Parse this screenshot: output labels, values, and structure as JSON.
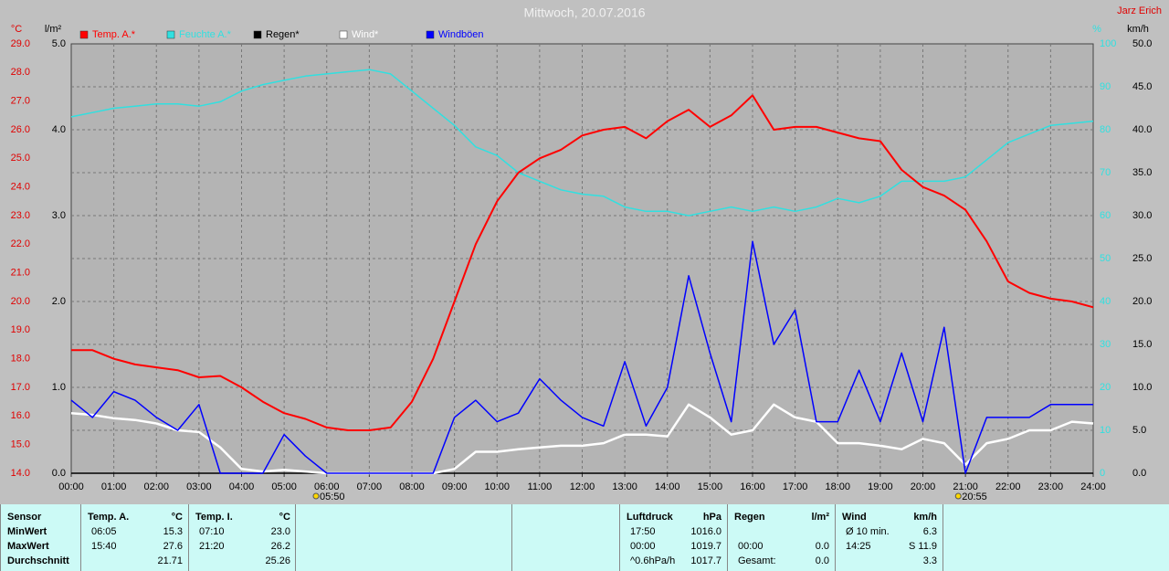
{
  "chart_data": {
    "type": "line",
    "title": "Mittwoch, 20.07.2016",
    "annotations": [
      {
        "text": "Jarz Erich"
      }
    ],
    "sun_markers": [
      {
        "text": "05:50",
        "x": 5.8333
      },
      {
        "text": "20:55",
        "x": 20.9167
      }
    ],
    "xlim": [
      0,
      24
    ],
    "xticks": [
      {
        "value": 0,
        "label": "00:00"
      },
      {
        "value": 1,
        "label": "01:00"
      },
      {
        "value": 2,
        "label": "02:00"
      },
      {
        "value": 3,
        "label": "03:00"
      },
      {
        "value": 4,
        "label": "04:00"
      },
      {
        "value": 5,
        "label": "05:00"
      },
      {
        "value": 6,
        "label": "06:00"
      },
      {
        "value": 7,
        "label": "07:00"
      },
      {
        "value": 8,
        "label": "08:00"
      },
      {
        "value": 9,
        "label": "09:00"
      },
      {
        "value": 10,
        "label": "10:00"
      },
      {
        "value": 11,
        "label": "11:00"
      },
      {
        "value": 12,
        "label": "12:00"
      },
      {
        "value": 13,
        "label": "13:00"
      },
      {
        "value": 14,
        "label": "14:00"
      },
      {
        "value": 15,
        "label": "15:00"
      },
      {
        "value": 16,
        "label": "16:00"
      },
      {
        "value": 17,
        "label": "17:00"
      },
      {
        "value": 18,
        "label": "18:00"
      },
      {
        "value": 19,
        "label": "19:00"
      },
      {
        "value": 20,
        "label": "20:00"
      },
      {
        "value": 21,
        "label": "21:00"
      },
      {
        "value": 22,
        "label": "22:00"
      },
      {
        "value": 23,
        "label": "23:00"
      },
      {
        "value": 24,
        "label": "24:00"
      }
    ],
    "grid": true,
    "axes": [
      {
        "title": "°C",
        "color": "#e00000",
        "lim": [
          14,
          29
        ],
        "ticks": [
          {
            "value": 14,
            "label": "14.0"
          },
          {
            "value": 15,
            "label": "15.0"
          },
          {
            "value": 16,
            "label": "16.0"
          },
          {
            "value": 17,
            "label": "17.0"
          },
          {
            "value": 18,
            "label": "18.0"
          },
          {
            "value": 19,
            "label": "19.0"
          },
          {
            "value": 20,
            "label": "20.0"
          },
          {
            "value": 21,
            "label": "21.0"
          },
          {
            "value": 22,
            "label": "22.0"
          },
          {
            "value": 23,
            "label": "23.0"
          },
          {
            "value": 24,
            "label": "24.0"
          },
          {
            "value": 25,
            "label": "25.0"
          },
          {
            "value": 26,
            "label": "26.0"
          },
          {
            "value": 27,
            "label": "27.0"
          },
          {
            "value": 28,
            "label": "28.0"
          },
          {
            "value": 29,
            "label": "29.0"
          }
        ]
      },
      {
        "title": "l/m²",
        "color": "#000000",
        "lim": [
          0,
          5
        ],
        "ticks": [
          {
            "value": 0,
            "label": "0.0"
          },
          {
            "value": 1,
            "label": "1.0"
          },
          {
            "value": 2,
            "label": "2.0"
          },
          {
            "value": 3,
            "label": "3.0"
          },
          {
            "value": 4,
            "label": "4.0"
          },
          {
            "value": 5,
            "label": "5.0"
          }
        ]
      },
      {
        "title": "%",
        "color": "#30e0e0",
        "lim": [
          0,
          100
        ],
        "ticks": [
          0,
          10,
          20,
          30,
          40,
          50,
          60,
          70,
          80,
          90,
          100
        ]
      },
      {
        "title": "km/h",
        "color": "#000000",
        "lim": [
          0,
          50
        ],
        "ticks": [
          {
            "value": 0,
            "label": "0.0"
          },
          {
            "value": 5,
            "label": "5.0"
          },
          {
            "value": 10,
            "label": "10.0"
          },
          {
            "value": 15,
            "label": "15.0"
          },
          {
            "value": 20,
            "label": "20.0"
          },
          {
            "value": 25,
            "label": "25.0"
          },
          {
            "value": 30,
            "label": "30.0"
          },
          {
            "value": 35,
            "label": "35.0"
          },
          {
            "value": 40,
            "label": "40.0"
          },
          {
            "value": 45,
            "label": "45.0"
          },
          {
            "value": 50,
            "label": "50.0"
          }
        ]
      }
    ],
    "x": [
      0,
      0.5,
      1,
      1.5,
      2,
      2.5,
      3,
      3.5,
      4,
      4.5,
      5,
      5.5,
      6,
      6.5,
      7,
      7.5,
      8,
      8.5,
      9,
      9.5,
      10,
      10.5,
      11,
      11.5,
      12,
      12.5,
      13,
      13.5,
      14,
      14.5,
      15,
      15.5,
      16,
      16.5,
      17,
      17.5,
      18,
      18.5,
      19,
      19.5,
      20,
      20.5,
      21,
      21.5,
      22,
      22.5,
      23,
      23.5,
      24
    ],
    "series": [
      {
        "name": "Temp. A.*",
        "color": "#ff0000",
        "axis": 0,
        "values": [
          18.3,
          18.3,
          18.0,
          17.8,
          17.7,
          17.6,
          17.35,
          17.4,
          17.0,
          16.5,
          16.1,
          15.9,
          15.6,
          15.5,
          15.5,
          15.6,
          16.5,
          18.0,
          20.0,
          22.0,
          23.5,
          24.5,
          25.0,
          25.3,
          25.8,
          26.0,
          26.1,
          25.7,
          26.3,
          26.7,
          26.1,
          26.5,
          27.2,
          26.0,
          26.1,
          26.1,
          25.9,
          25.7,
          25.6,
          24.6,
          24.0,
          23.7,
          23.2,
          22.1,
          20.7,
          20.3,
          20.1,
          20.0,
          19.8
        ]
      },
      {
        "name": "Feuchte A.*",
        "color": "#30e0e0",
        "axis": 2,
        "values": [
          83,
          84,
          85,
          85.5,
          86,
          86,
          85.5,
          86.5,
          89,
          90.5,
          91.5,
          92.5,
          93,
          93.5,
          94,
          93,
          89,
          85,
          81,
          76,
          74,
          70,
          68,
          66,
          65,
          64.5,
          62,
          61,
          61,
          60,
          61,
          62,
          61,
          62,
          61,
          62,
          64,
          63,
          64.5,
          68,
          68,
          68,
          69,
          73,
          77,
          79,
          81,
          81.5,
          82
        ]
      },
      {
        "name": "Regen*",
        "color": "#000000",
        "axis": 1,
        "values": [
          0,
          0,
          0,
          0,
          0,
          0,
          0,
          0,
          0,
          0,
          0,
          0,
          0,
          0,
          0,
          0,
          0,
          0,
          0,
          0,
          0,
          0,
          0,
          0,
          0,
          0,
          0,
          0,
          0,
          0,
          0,
          0,
          0,
          0,
          0,
          0,
          0,
          0,
          0,
          0,
          0,
          0,
          0,
          0,
          0,
          0,
          0,
          0,
          0
        ]
      },
      {
        "name": "Wind*",
        "color": "#ffffff",
        "axis": 3,
        "values": [
          7.0,
          6.8,
          6.4,
          6.2,
          5.8,
          5.0,
          4.8,
          3.0,
          0.5,
          0.2,
          0.4,
          0.2,
          0,
          0,
          0,
          0,
          0,
          0,
          0.5,
          2.5,
          2.5,
          2.8,
          3.0,
          3.2,
          3.2,
          3.5,
          4.5,
          4.5,
          4.3,
          8.0,
          6.5,
          4.5,
          5.0,
          8.0,
          6.5,
          6.0,
          3.5,
          3.5,
          3.2,
          2.8,
          4.0,
          3.5,
          1.0,
          3.5,
          4.0,
          5.0,
          5.0,
          6.0,
          5.8
        ]
      },
      {
        "name": "Windböen",
        "color": "#0000ff",
        "axis": 3,
        "values": [
          8.5,
          6.5,
          9.5,
          8.5,
          6.5,
          5,
          8,
          0,
          0,
          0,
          4.5,
          2,
          0,
          0,
          0,
          0,
          0,
          0,
          6.5,
          8.5,
          6,
          7,
          11,
          8.5,
          6.5,
          5.5,
          13,
          5.5,
          10,
          23,
          14,
          6,
          27,
          15,
          19,
          6,
          6,
          12,
          6,
          14,
          6,
          17,
          0,
          6.5,
          6.5,
          6.5,
          8,
          8,
          8
        ]
      }
    ]
  },
  "stats": {
    "panels": [
      {
        "title": "Sensor",
        "rows": [
          [
            "MinWert"
          ],
          [
            "MaxWert"
          ],
          [
            "Durchschnitt"
          ]
        ]
      },
      {
        "title": "Temp. A.",
        "unit": "°C",
        "rows": [
          [
            "06:05",
            "15.3"
          ],
          [
            "15:40",
            "27.6"
          ],
          [
            null,
            "21.71"
          ]
        ]
      },
      {
        "title": "Temp. I.",
        "unit": "°C",
        "rows": [
          [
            "07:10",
            "23.0"
          ],
          [
            "21:20",
            "26.2"
          ],
          [
            null,
            "25.26"
          ]
        ]
      },
      {
        "title": "Luftdruck",
        "unit": "hPa",
        "rows": [
          [
            "17:50",
            "1016.0"
          ],
          [
            "00:00",
            "1019.7"
          ],
          [
            "^0.6hPa/h",
            "1017.7"
          ]
        ]
      },
      {
        "title": "Regen",
        "unit": "l/m²",
        "rows": [
          [
            null,
            null
          ],
          [
            "00:00",
            "0.0"
          ],
          [
            "Gesamt:",
            "0.0"
          ]
        ]
      },
      {
        "title": "Wind",
        "unit": "km/h",
        "rows": [
          [
            "Ø 10 min.",
            "6.3"
          ],
          [
            "14:25",
            "S 11.9"
          ],
          [
            null,
            "3.3"
          ]
        ]
      }
    ]
  }
}
